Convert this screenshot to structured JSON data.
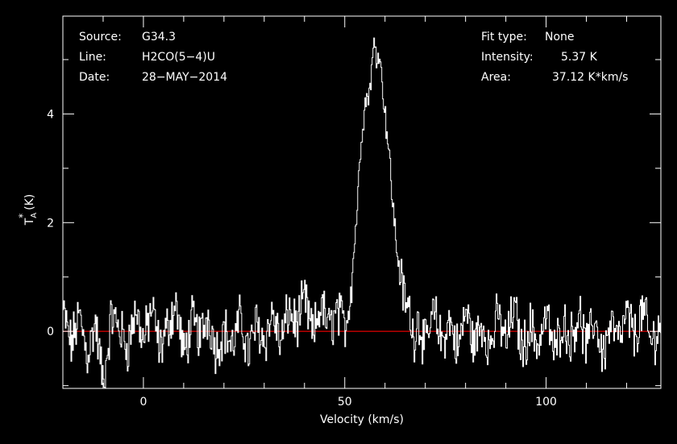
{
  "header_left": {
    "source_label": "Source:",
    "source_value": "G34.3",
    "line_label": "Line:",
    "line_value": "H2CO(5−4)U",
    "date_label": "Date:",
    "date_value": "28−MAY−2014"
  },
  "header_right": {
    "fit_label": "Fit type:",
    "fit_value": "None",
    "intensity_label": "Intensity:",
    "intensity_value": "5.37 K",
    "area_label": "Area:",
    "area_value": "37.12 K*km/s"
  },
  "chart_data": {
    "type": "line",
    "xlabel": "Velocity (km/s)",
    "ylabel": "T*A (K)",
    "ylabel_main": "T",
    "ylabel_sup": "*",
    "ylabel_sub": "A",
    "ylabel_unit": "(K)",
    "xlim": [
      -20,
      128.5
    ],
    "ylim": [
      -1.05,
      5.8
    ],
    "x_ticks": [
      0,
      50,
      100
    ],
    "x_tick_labels": [
      "0",
      "50",
      "100"
    ],
    "y_ticks": [
      0,
      2,
      4
    ],
    "y_tick_labels": [
      "0",
      "2",
      "4"
    ],
    "baseline_y": 0,
    "colors": {
      "spectrum": "#ffffff",
      "baseline": "#cc0000",
      "axes": "#ffffff",
      "background": "#000000"
    },
    "series": [
      {
        "x": [
          -20,
          -18,
          -16,
          -14,
          -12,
          -10,
          -8,
          -6,
          -4,
          -2,
          0,
          2,
          4,
          6,
          8,
          10,
          12,
          14,
          16,
          18,
          20,
          22,
          24,
          26,
          28,
          30,
          32,
          34,
          36,
          38,
          40,
          42,
          44,
          46,
          48,
          50,
          51,
          52,
          53,
          54,
          55,
          56,
          57,
          57.5,
          58,
          58.5,
          59,
          60,
          61,
          62,
          63,
          64,
          65,
          66,
          67,
          68,
          70,
          72,
          74,
          76,
          78,
          80,
          82,
          84,
          86,
          88,
          90,
          92,
          94,
          96,
          98,
          100,
          102,
          104,
          106,
          108,
          110,
          112,
          114,
          116,
          118,
          120,
          122,
          124,
          126,
          128
        ],
        "y": [
          0.35,
          -0.25,
          0.3,
          -0.45,
          0.15,
          -1.0,
          0.3,
          0.05,
          -0.3,
          0.4,
          -0.2,
          0.45,
          -0.35,
          0.1,
          0.5,
          -0.45,
          0.2,
          -0.1,
          0.3,
          -0.35,
          0.05,
          -0.3,
          0.25,
          -0.4,
          0.15,
          -0.2,
          0.35,
          -0.25,
          0.4,
          0.1,
          0.6,
          -0.1,
          0.5,
          0.05,
          0.35,
          0.1,
          0.5,
          1.3,
          2.3,
          3.6,
          4.2,
          4.4,
          5.1,
          5.37,
          5.0,
          5.3,
          4.7,
          4.0,
          3.2,
          2.2,
          1.4,
          0.9,
          0.5,
          0.4,
          -0.15,
          0.25,
          -0.3,
          0.35,
          -0.2,
          0.2,
          -0.35,
          0.4,
          -0.25,
          0.15,
          -0.3,
          0.3,
          -0.2,
          0.45,
          -0.35,
          0.1,
          -0.25,
          0.3,
          -0.4,
          0.2,
          -0.15,
          0.35,
          -0.3,
          0.25,
          -0.45,
          0.15,
          -0.2,
          0.3,
          -0.1,
          0.4,
          -0.25,
          0.1
        ]
      }
    ]
  }
}
